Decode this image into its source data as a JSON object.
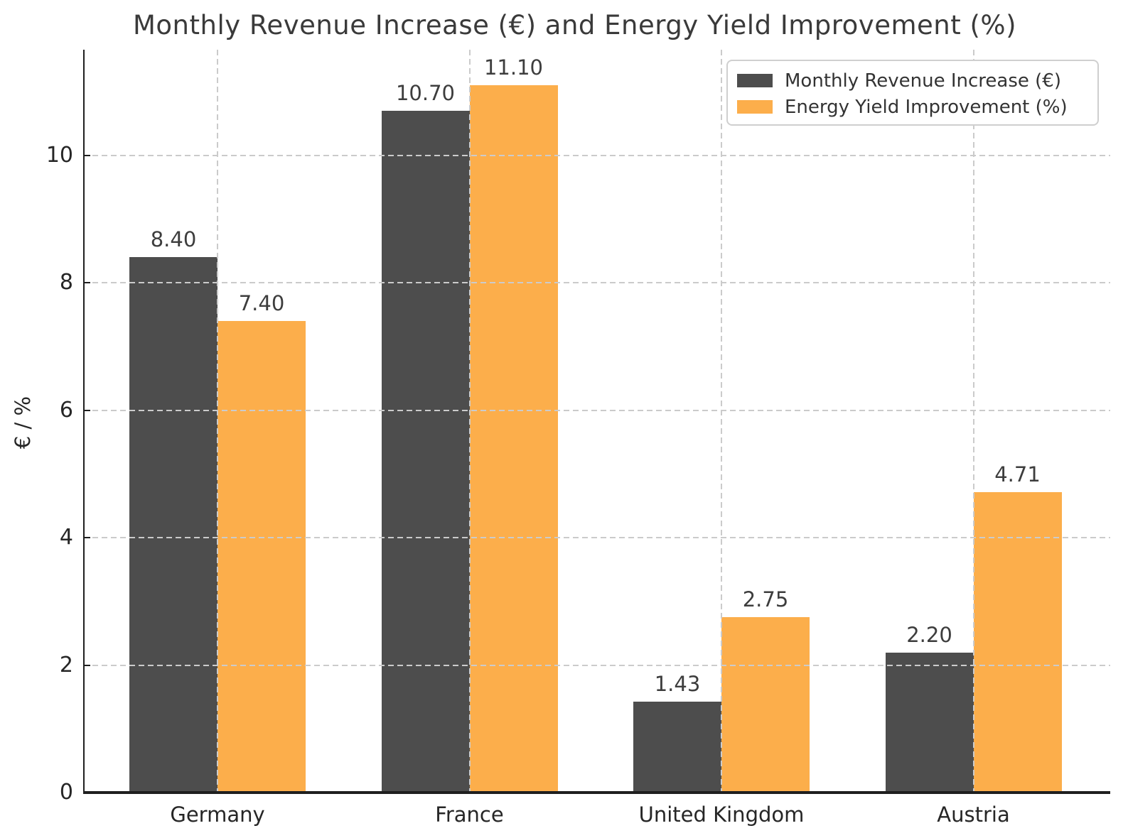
{
  "chart_data": {
    "type": "bar",
    "title": "Monthly Revenue Increase (€) and Energy Yield Improvement (%)",
    "ylabel": "€ / %",
    "xlabel": "",
    "categories": [
      "Germany",
      "France",
      "United Kingdom",
      "Austria"
    ],
    "series": [
      {
        "name": "Monthly Revenue Increase (€)",
        "color": "#4d4d4d",
        "values": [
          8.4,
          10.7,
          1.43,
          2.2
        ]
      },
      {
        "name": "Energy Yield Improvement (%)",
        "color": "#fcae4b",
        "values": [
          7.4,
          11.1,
          2.75,
          4.71
        ]
      }
    ],
    "value_labels": [
      "8.40",
      "7.40",
      "10.70",
      "11.10",
      "1.43",
      "2.75",
      "2.20",
      "4.71"
    ],
    "yticks": [
      0,
      2,
      4,
      6,
      8,
      10
    ],
    "ylim": [
      0,
      11.66
    ],
    "grid": true,
    "grid_style": "dashed",
    "grid_above_bars": true,
    "legend_position": "upper right"
  },
  "colors": {
    "background": "#ffffff",
    "axis": "#1f1f1f",
    "grid": "#cbcbcb",
    "title_text": "#3a3a3a",
    "tick_text": "#262626"
  }
}
